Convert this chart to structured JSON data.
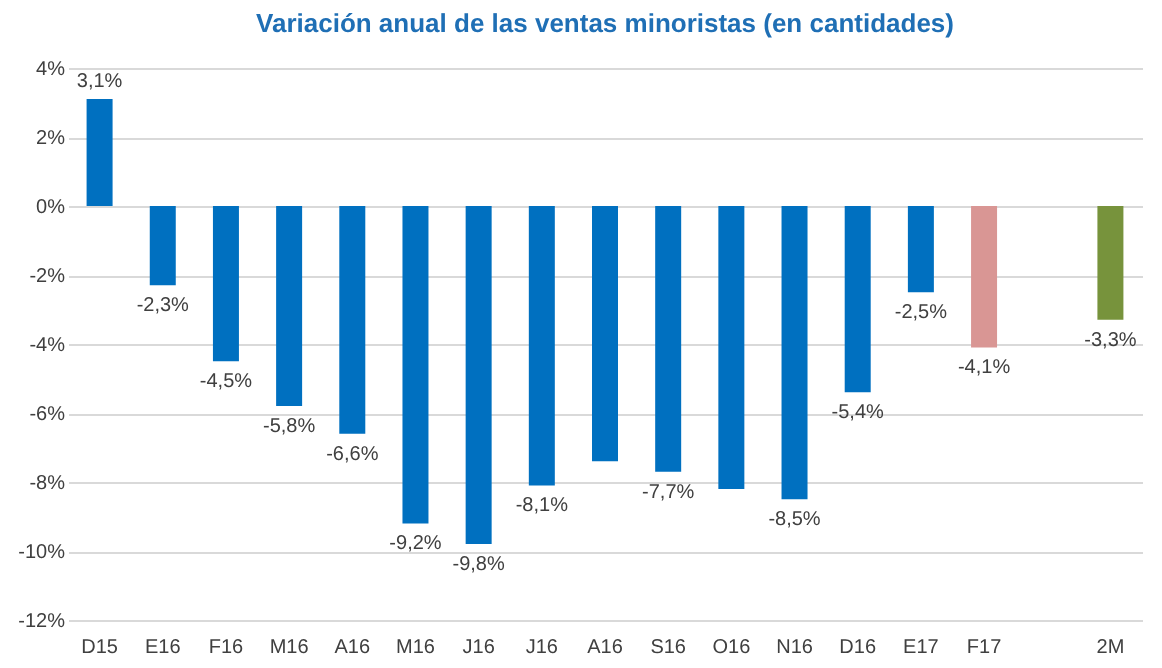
{
  "chart_data": {
    "type": "bar",
    "title": "Variación anual de las ventas minoristas (en cantidades)",
    "categories": [
      "D15",
      "E16",
      "F16",
      "M16",
      "A16",
      "M16",
      "J16",
      "J16",
      "A16",
      "S16",
      "O16",
      "N16",
      "D16",
      "E17",
      "F17",
      null,
      "2M"
    ],
    "values": [
      3.1,
      -2.3,
      -4.5,
      -5.8,
      -6.6,
      -9.2,
      -9.8,
      -8.1,
      -7.4,
      -7.7,
      -8.2,
      -8.5,
      -5.4,
      -2.5,
      -4.1,
      null,
      -3.3
    ],
    "value_labels": [
      "3,1%",
      "-2,3%",
      "-4,5%",
      "-5,8%",
      "-6,6%",
      "-9,2%",
      "-9,8%",
      "-8,1%",
      null,
      "-7,7%",
      null,
      "-8,5%",
      "-5,4%",
      "-2,5%",
      "-4,1%",
      null,
      "-3,3%"
    ],
    "colors": [
      "#0070c0",
      "#0070c0",
      "#0070c0",
      "#0070c0",
      "#0070c0",
      "#0070c0",
      "#0070c0",
      "#0070c0",
      "#0070c0",
      "#0070c0",
      "#0070c0",
      "#0070c0",
      "#0070c0",
      "#0070c0",
      "#d99694",
      "#0070c0",
      "#77933c"
    ],
    "ylim": [
      -12,
      4
    ],
    "yticks": [
      {
        "value": -12,
        "label": "-12%"
      },
      {
        "value": -10,
        "label": "-10%"
      },
      {
        "value": -8,
        "label": "-8%"
      },
      {
        "value": -6,
        "label": "-6%"
      },
      {
        "value": -4,
        "label": "-4%"
      },
      {
        "value": -2,
        "label": "-2%"
      },
      {
        "value": 0,
        "label": "0%"
      },
      {
        "value": 2,
        "label": "2%"
      },
      {
        "value": 4,
        "label": "4%"
      }
    ],
    "grid": "y"
  }
}
